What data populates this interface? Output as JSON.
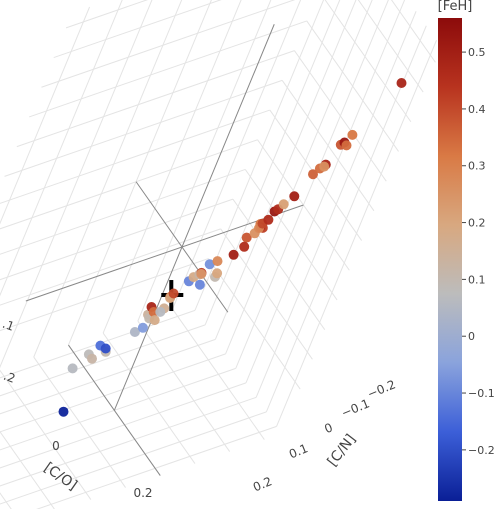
{
  "chart_data": {
    "type": "scatter",
    "title": "",
    "axes": {
      "x": {
        "label": "[C/O]",
        "ticks": [
          {
            "v": 0,
            "label": "0"
          },
          {
            "v": 0.2,
            "label": "0.2"
          }
        ]
      },
      "y": {
        "label": "[C/N]",
        "ticks": [
          {
            "v": -0.2,
            "label": "−0.2"
          },
          {
            "v": -0.1,
            "label": "−0.1"
          },
          {
            "v": 0,
            "label": "0"
          },
          {
            "v": 0.1,
            "label": "0.1"
          },
          {
            "v": 0.2,
            "label": "0.2"
          }
        ]
      },
      "z": {
        "label": "",
        "ticks": [
          {
            "v": -0.1,
            "label": ".1"
          },
          {
            "v": -0.2,
            "label": ".2"
          }
        ]
      }
    },
    "colorbar": {
      "title": "[FeH]",
      "range": [
        -0.29,
        0.56
      ],
      "ticks": [
        {
          "v": 0.5,
          "label": "0.5"
        },
        {
          "v": 0.4,
          "label": "0.4"
        },
        {
          "v": 0.3,
          "label": "0.3"
        },
        {
          "v": 0.2,
          "label": "0.2"
        },
        {
          "v": 0.1,
          "label": "0.1"
        },
        {
          "v": 0,
          "label": "0"
        },
        {
          "v": -0.1,
          "label": "−0.1"
        },
        {
          "v": -0.2,
          "label": "−0.2"
        }
      ],
      "colorscale": [
        "#0a1f96",
        "#3c5fd8",
        "#8aa3dc",
        "#bcbcbc",
        "#d8a880",
        "#d97a45",
        "#b8331f",
        "#8c0b0b"
      ]
    },
    "points": [
      {
        "x": 0.33,
        "y": -0.33,
        "z": 0.58,
        "c": 0.48
      },
      {
        "x": 0.27,
        "y": -0.27,
        "z": 0.4,
        "c": 0.32
      },
      {
        "x": 0.26,
        "y": -0.25,
        "z": 0.37,
        "c": 0.38
      },
      {
        "x": 0.26,
        "y": -0.27,
        "z": 0.36,
        "c": 0.34
      },
      {
        "x": 0.24,
        "y": -0.27,
        "z": 0.36,
        "c": 0.52
      },
      {
        "x": 0.25,
        "y": -0.23,
        "z": 0.3,
        "c": 0.26
      },
      {
        "x": 0.21,
        "y": -0.24,
        "z": 0.27,
        "c": 0.34
      },
      {
        "x": 0.2,
        "y": -0.26,
        "z": 0.27,
        "c": 0.48
      },
      {
        "x": 0.2,
        "y": -0.23,
        "z": 0.25,
        "c": 0.36
      },
      {
        "x": 0.17,
        "y": -0.19,
        "z": 0.15,
        "c": 0.22
      },
      {
        "x": 0.16,
        "y": -0.22,
        "z": 0.16,
        "c": 0.5
      },
      {
        "x": 0.15,
        "y": -0.18,
        "z": 0.12,
        "c": 0.52
      },
      {
        "x": 0.13,
        "y": -0.2,
        "z": 0.11,
        "c": 0.46
      },
      {
        "x": 0.17,
        "y": -0.14,
        "z": 0.09,
        "c": 0.28
      },
      {
        "x": 0.18,
        "y": -0.14,
        "z": 0.11,
        "c": 0.4
      },
      {
        "x": 0.17,
        "y": -0.16,
        "z": 0.11,
        "c": 0.46
      },
      {
        "x": 0.15,
        "y": -0.15,
        "z": 0.09,
        "c": 0.32
      },
      {
        "x": 0.12,
        "y": -0.16,
        "z": 0.04,
        "c": 0.26
      },
      {
        "x": 0.14,
        "y": -0.16,
        "z": 0.07,
        "c": 0.44
      },
      {
        "x": 0.12,
        "y": -0.18,
        "z": 0.05,
        "c": 0.42
      },
      {
        "x": 0.1,
        "y": -0.15,
        "z": 0.02,
        "c": 0.38
      },
      {
        "x": 0.09,
        "y": -0.09,
        "z": -0.04,
        "c": 0.28
      },
      {
        "x": 0.1,
        "y": -0.13,
        "z": -0.03,
        "c": 0.5
      },
      {
        "x": 0.09,
        "y": -0.16,
        "z": -0.02,
        "c": 0.46
      },
      {
        "x": 0.1,
        "y": -0.1,
        "z": -0.08,
        "c": 0.2
      },
      {
        "x": 0.05,
        "y": -0.09,
        "z": -0.07,
        "c": -0.08
      },
      {
        "x": 0.06,
        "y": -0.07,
        "z": -0.09,
        "c": 0.24
      },
      {
        "x": 0.04,
        "y": -0.08,
        "z": -0.1,
        "c": 0.42
      },
      {
        "x": 0.02,
        "y": -0.07,
        "z": -0.12,
        "c": 0.18
      },
      {
        "x": 0.06,
        "y": -0.12,
        "z": -0.12,
        "c": 0.1
      },
      {
        "x": 0.06,
        "y": -0.08,
        "z": -0.13,
        "c": -0.1
      },
      {
        "x": 0.03,
        "y": -0.08,
        "z": -0.11,
        "c": 0.12
      },
      {
        "x": 0.02,
        "y": -0.06,
        "z": -0.13,
        "c": -0.1
      },
      {
        "x": 0.03,
        "y": -0.02,
        "z": -0.15,
        "c": 0.4
      },
      {
        "x": 0.02,
        "y": -0.02,
        "z": -0.17,
        "c": 0.2
      },
      {
        "x": 0.0,
        "y": -0.03,
        "z": -0.18,
        "c": 0.3
      },
      {
        "x": 0.02,
        "y": 0.03,
        "z": -0.18,
        "c": 0.48
      },
      {
        "x": 0.01,
        "y": 0.01,
        "z": -0.21,
        "c": 0.34
      },
      {
        "x": 0.05,
        "y": 0.01,
        "z": -0.19,
        "c": 0.06
      },
      {
        "x": 0.01,
        "y": -0.02,
        "z": -0.21,
        "c": 0.16
      },
      {
        "x": 0.0,
        "y": 0.02,
        "z": -0.22,
        "c": 0.14
      },
      {
        "x": 0.0,
        "y": -0.01,
        "z": -0.25,
        "c": 0.18
      },
      {
        "x": -0.02,
        "y": 0.0,
        "z": -0.25,
        "c": 0.1
      },
      {
        "x": 0.02,
        "y": 0.03,
        "z": -0.25,
        "c": -0.06
      },
      {
        "x": 0.0,
        "y": 0.04,
        "z": -0.27,
        "c": 0.04
      },
      {
        "x": -0.12,
        "y": 0.05,
        "z": -0.38,
        "c": -0.2
      },
      {
        "x": -0.16,
        "y": 0.05,
        "z": -0.39,
        "c": -0.14
      },
      {
        "x": -0.13,
        "y": 0.04,
        "z": -0.4,
        "c": 0.1
      },
      {
        "x": -0.19,
        "y": 0.06,
        "z": -0.43,
        "c": 0.08
      },
      {
        "x": -0.16,
        "y": 0.06,
        "z": -0.43,
        "c": 0.12
      },
      {
        "x": -0.2,
        "y": 0.09,
        "z": -0.47,
        "c": 0.06
      },
      {
        "x": -0.09,
        "y": 0.12,
        "z": -0.55,
        "c": -0.28
      }
    ]
  }
}
